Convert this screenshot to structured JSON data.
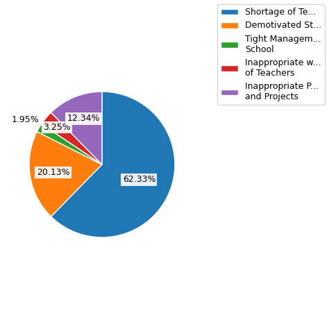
{
  "chart_data": {
    "type": "pie",
    "categories": [
      "Shortage of Te...",
      "Demotivated St...",
      "Tight Managem...\nSchool",
      "Inappropriate w...\nof Teachers",
      "Inappropriate P...\nand Projects"
    ],
    "values": [
      62.33,
      20.13,
      1.95,
      3.25,
      12.34
    ],
    "value_labels": [
      "62.33%",
      "20.13%",
      "1.95%",
      "3.25%",
      "12.34%"
    ],
    "data_labels": true,
    "legend": "upper right"
  }
}
